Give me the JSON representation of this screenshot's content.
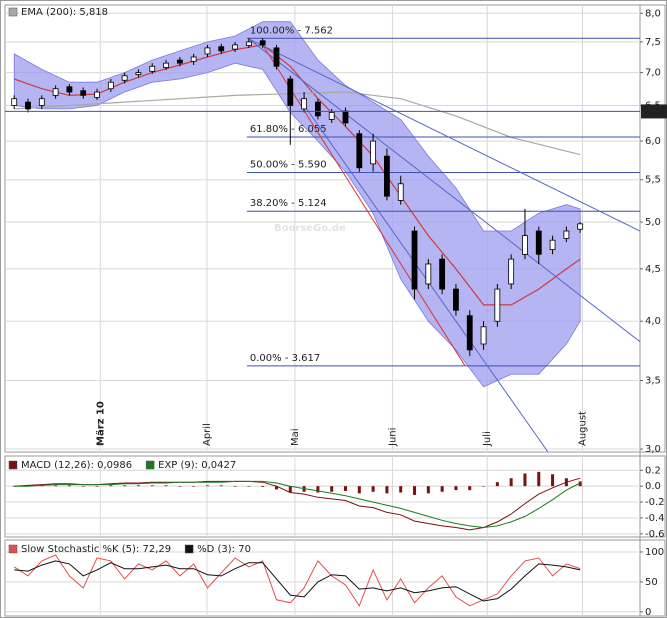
{
  "chart_data": [
    {
      "type": "candlestick",
      "watermark": "BoerseGo.de",
      "log_scale": true,
      "grid": true,
      "xlim": [
        -2,
        136
      ],
      "xticks": [
        {
          "value": 18.7,
          "label": "März 10"
        },
        {
          "value": 41.9,
          "label": "April"
        },
        {
          "value": 61,
          "label": "Mai"
        },
        {
          "value": 82.2,
          "label": "Juni"
        },
        {
          "value": 102.8,
          "label": "Juli"
        },
        {
          "value": 123.5,
          "label": "August"
        }
      ],
      "ylim": [
        2.98,
        8.15
      ],
      "yticks": [
        {
          "value": 3,
          "label": "3,0"
        },
        {
          "value": 3.5,
          "label": "3,5"
        },
        {
          "value": 4,
          "label": "4,0"
        },
        {
          "value": 4.5,
          "label": "4,5"
        },
        {
          "value": 5,
          "label": "5,0"
        },
        {
          "value": 5.5,
          "label": "5,5"
        },
        {
          "value": 6,
          "label": "6,0"
        },
        {
          "value": 6.5,
          "label": "6,5"
        },
        {
          "value": 7,
          "label": "7,0"
        },
        {
          "value": 7.5,
          "label": "7,5"
        },
        {
          "value": 8,
          "label": "8,0"
        }
      ],
      "price_marker": 6.414,
      "x": [
        0,
        3,
        6,
        9,
        12,
        15,
        18,
        21,
        24,
        27,
        30,
        33,
        36,
        39,
        42,
        45,
        48,
        51,
        54,
        57,
        60,
        63,
        66,
        69,
        72,
        75,
        78,
        81,
        84,
        87,
        90,
        93,
        96,
        99,
        102,
        105,
        108,
        111,
        114,
        117,
        120,
        123
      ],
      "open": [
        6.5,
        6.55,
        6.5,
        6.65,
        6.78,
        6.72,
        6.62,
        6.75,
        6.88,
        6.97,
        7.02,
        7.08,
        7.2,
        7.18,
        7.3,
        7.42,
        7.38,
        7.44,
        7.52,
        7.4,
        6.9,
        6.45,
        6.55,
        6.3,
        6.42,
        6.1,
        5.7,
        5.8,
        5.25,
        4.9,
        4.35,
        4.6,
        4.3,
        4.05,
        3.8,
        4.0,
        4.35,
        4.65,
        4.9,
        4.7,
        4.82,
        4.92
      ],
      "high": [
        6.65,
        6.6,
        6.65,
        6.8,
        6.82,
        6.77,
        6.75,
        6.9,
        7.0,
        7.05,
        7.15,
        7.2,
        7.25,
        7.3,
        7.45,
        7.47,
        7.5,
        7.56,
        7.56,
        7.45,
        6.95,
        6.7,
        6.6,
        6.45,
        6.47,
        6.15,
        6.1,
        5.9,
        5.55,
        4.95,
        4.6,
        4.65,
        4.35,
        4.1,
        4.0,
        4.35,
        4.65,
        5.15,
        4.95,
        4.85,
        4.95,
        5.0
      ],
      "low": [
        6.45,
        6.4,
        6.45,
        6.6,
        6.65,
        6.6,
        6.58,
        6.7,
        6.83,
        6.92,
        6.98,
        7.04,
        7.1,
        7.12,
        7.25,
        7.3,
        7.33,
        7.4,
        7.4,
        7.05,
        5.95,
        6.4,
        6.3,
        6.25,
        6.2,
        5.6,
        5.6,
        5.25,
        5.2,
        4.2,
        4.3,
        4.25,
        4.05,
        3.7,
        3.75,
        3.95,
        4.3,
        4.6,
        4.55,
        4.65,
        4.78,
        4.88
      ],
      "close": [
        6.6,
        6.45,
        6.6,
        6.75,
        6.7,
        6.65,
        6.7,
        6.85,
        6.95,
        7.0,
        7.1,
        7.15,
        7.15,
        7.25,
        7.4,
        7.35,
        7.45,
        7.5,
        7.45,
        7.1,
        6.5,
        6.6,
        6.35,
        6.4,
        6.25,
        5.65,
        6.0,
        5.3,
        5.45,
        4.3,
        4.55,
        4.3,
        4.1,
        3.75,
        3.95,
        4.3,
        4.6,
        4.85,
        4.65,
        4.8,
        4.9,
        4.98
      ],
      "bands": {
        "color": "#9c9cf0",
        "middle_color": "#d03a3a",
        "x": [
          0,
          6,
          12,
          18,
          24,
          30,
          36,
          42,
          48,
          54,
          60,
          66,
          72,
          78,
          84,
          90,
          96,
          102,
          108,
          114,
          120,
          123
        ],
        "upper": [
          7.3,
          7.05,
          6.85,
          6.85,
          7.0,
          7.2,
          7.35,
          7.5,
          7.6,
          7.85,
          7.85,
          7.2,
          6.8,
          6.55,
          6.3,
          5.8,
          5.4,
          4.9,
          4.9,
          5.1,
          5.2,
          5.15
        ],
        "middle": [
          6.9,
          6.75,
          6.65,
          6.67,
          6.85,
          7.0,
          7.12,
          7.25,
          7.37,
          7.45,
          7.1,
          6.6,
          6.2,
          5.8,
          5.3,
          4.85,
          4.5,
          4.15,
          4.15,
          4.3,
          4.5,
          4.6
        ],
        "lower": [
          6.5,
          6.45,
          6.45,
          6.5,
          6.7,
          6.85,
          6.9,
          7.0,
          7.15,
          7.05,
          6.4,
          6.0,
          5.6,
          5.1,
          4.4,
          4.0,
          3.75,
          3.45,
          3.55,
          3.55,
          3.8,
          4.0
        ]
      },
      "series": [
        {
          "name": "EMA (200): 5,818",
          "color": "#a8a8a8",
          "x": [
            0,
            24,
            48,
            72,
            84,
            96,
            108,
            123
          ],
          "values": [
            6.45,
            6.55,
            6.65,
            6.7,
            6.6,
            6.35,
            6.05,
            5.82
          ]
        }
      ],
      "fib_levels": [
        {
          "value": 7.562,
          "label": "100.00% - 7.562"
        },
        {
          "value": 6.055,
          "label": "61.80% - 6.055"
        },
        {
          "value": 5.59,
          "label": "50.00% - 5.590"
        },
        {
          "value": 5.124,
          "label": "38.20% - 5.124"
        },
        {
          "value": 3.617,
          "label": "0.00% - 3.617"
        }
      ],
      "trend_lines": [
        {
          "color": "#5566cc",
          "x": [
            51,
            136
          ],
          "y": [
            7.55,
            3.82
          ]
        },
        {
          "color": "#5566cc",
          "x": [
            51,
            136
          ],
          "y": [
            7.55,
            4.9
          ]
        },
        {
          "color": "#5566cc",
          "x": [
            62,
            116
          ],
          "y": [
            6.6,
            2.98
          ]
        },
        {
          "color": "#dd3333",
          "x": [
            54,
            98
          ],
          "y": [
            7.45,
            3.617
          ]
        }
      ]
    },
    {
      "type": "macd",
      "xlim": [
        -2,
        136
      ],
      "ylim": [
        -0.64,
        0.38
      ],
      "yticks": [
        -0.6,
        -0.4,
        -0.2,
        {
          "value": 0,
          "label": "0.0"
        },
        0.2
      ],
      "x": [
        0,
        3,
        6,
        9,
        12,
        15,
        18,
        21,
        24,
        27,
        30,
        33,
        36,
        39,
        42,
        45,
        48,
        51,
        54,
        57,
        60,
        63,
        66,
        69,
        72,
        75,
        78,
        81,
        84,
        87,
        90,
        93,
        96,
        99,
        102,
        105,
        108,
        111,
        114,
        117,
        120,
        123
      ],
      "histogram": {
        "color": "#7a1010",
        "values": [
          0.0,
          0.01,
          0.01,
          0.01,
          0.01,
          0.0,
          0.0,
          0.01,
          0.01,
          0.01,
          0.01,
          0.01,
          0.0,
          0.0,
          0.01,
          0.01,
          0.0,
          0.0,
          -0.01,
          -0.04,
          -0.08,
          -0.07,
          -0.08,
          -0.07,
          -0.06,
          -0.09,
          -0.07,
          -0.09,
          -0.08,
          -0.11,
          -0.09,
          -0.07,
          -0.05,
          -0.05,
          0.0,
          0.05,
          0.1,
          0.16,
          0.18,
          0.15,
          0.1,
          0.06
        ]
      },
      "series": [
        {
          "name": "MACD (12,26): 0,0986",
          "color": "#7a1010",
          "values": [
            0.0,
            0.01,
            0.02,
            0.03,
            0.03,
            0.02,
            0.02,
            0.03,
            0.04,
            0.04,
            0.05,
            0.05,
            0.05,
            0.05,
            0.06,
            0.06,
            0.06,
            0.06,
            0.05,
            0.0,
            -0.08,
            -0.1,
            -0.14,
            -0.16,
            -0.18,
            -0.25,
            -0.27,
            -0.33,
            -0.36,
            -0.44,
            -0.47,
            -0.5,
            -0.52,
            -0.55,
            -0.52,
            -0.45,
            -0.35,
            -0.22,
            -0.1,
            -0.02,
            0.05,
            0.1
          ]
        },
        {
          "name": "EXP (9): 0,0427",
          "color": "#1f7a1f",
          "values": [
            0.0,
            0.0,
            0.01,
            0.02,
            0.02,
            0.02,
            0.02,
            0.02,
            0.03,
            0.03,
            0.04,
            0.04,
            0.05,
            0.05,
            0.05,
            0.05,
            0.06,
            0.06,
            0.06,
            0.04,
            0.0,
            -0.03,
            -0.06,
            -0.09,
            -0.12,
            -0.16,
            -0.2,
            -0.24,
            -0.28,
            -0.33,
            -0.38,
            -0.43,
            -0.47,
            -0.5,
            -0.52,
            -0.5,
            -0.45,
            -0.38,
            -0.28,
            -0.17,
            -0.05,
            0.04
          ]
        }
      ]
    },
    {
      "type": "line",
      "xlim": [
        -2,
        136
      ],
      "ylim": [
        -7,
        120
      ],
      "yticks": [
        0,
        50,
        100
      ],
      "x": [
        0,
        3,
        6,
        9,
        12,
        15,
        18,
        21,
        24,
        27,
        30,
        33,
        36,
        39,
        42,
        45,
        48,
        51,
        54,
        57,
        60,
        63,
        66,
        69,
        72,
        75,
        78,
        81,
        84,
        87,
        90,
        93,
        96,
        99,
        102,
        105,
        108,
        111,
        114,
        117,
        120,
        123
      ],
      "series": [
        {
          "name": "Slow Stochastic %K (5): 72,29",
          "color": "#e05050",
          "values": [
            75,
            60,
            85,
            95,
            60,
            40,
            90,
            85,
            55,
            80,
            70,
            85,
            60,
            80,
            40,
            65,
            90,
            75,
            85,
            20,
            15,
            40,
            85,
            60,
            45,
            10,
            70,
            20,
            55,
            15,
            40,
            60,
            25,
            10,
            20,
            30,
            60,
            85,
            90,
            60,
            80,
            72.29
          ]
        },
        {
          "name": "%D (3): 70",
          "color": "#111111",
          "values": [
            70,
            68,
            78,
            85,
            80,
            60,
            70,
            82,
            72,
            72,
            75,
            78,
            72,
            72,
            62,
            60,
            72,
            82,
            82,
            55,
            28,
            25,
            50,
            62,
            60,
            38,
            40,
            35,
            40,
            32,
            35,
            40,
            42,
            30,
            18,
            22,
            38,
            60,
            80,
            78,
            75,
            70
          ]
        }
      ]
    }
  ]
}
